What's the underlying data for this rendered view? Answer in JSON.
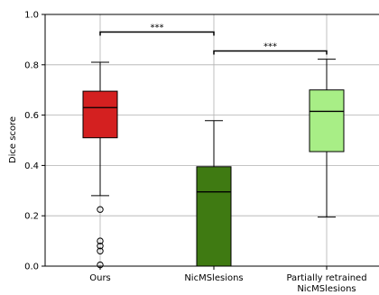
{
  "chart_data": {
    "type": "box",
    "title": "",
    "xlabel": "",
    "ylabel": "Dice score",
    "ylim": [
      0,
      1
    ],
    "yticks": [
      "0.0",
      "0.2",
      "0.4",
      "0.6",
      "0.8",
      "1.0"
    ],
    "grid": true,
    "categories": [
      {
        "lines": [
          "Ours"
        ]
      },
      {
        "lines": [
          "NicMSlesions"
        ]
      },
      {
        "lines": [
          "Partially retrained",
          "NicMSlesions"
        ]
      }
    ],
    "boxes": [
      {
        "whisker_low": 0.28,
        "q1": 0.51,
        "median": 0.63,
        "q3": 0.695,
        "whisker_high": 0.81,
        "outliers": [
          0.225,
          0.1,
          0.08,
          0.06,
          0.005
        ],
        "color": "#d42020"
      },
      {
        "whisker_low": 0.0,
        "q1": 0.0,
        "median": 0.295,
        "q3": 0.395,
        "whisker_high": 0.578,
        "outliers": [],
        "color": "#3f7a12"
      },
      {
        "whisker_low": 0.195,
        "q1": 0.455,
        "median": 0.615,
        "q3": 0.7,
        "whisker_high": 0.822,
        "outliers": [],
        "color": "#a8ee86"
      }
    ],
    "significance": [
      {
        "from": 0,
        "to": 1,
        "y": 0.93,
        "label": "***"
      },
      {
        "from": 1,
        "to": 2,
        "y": 0.855,
        "label": "***"
      }
    ]
  }
}
